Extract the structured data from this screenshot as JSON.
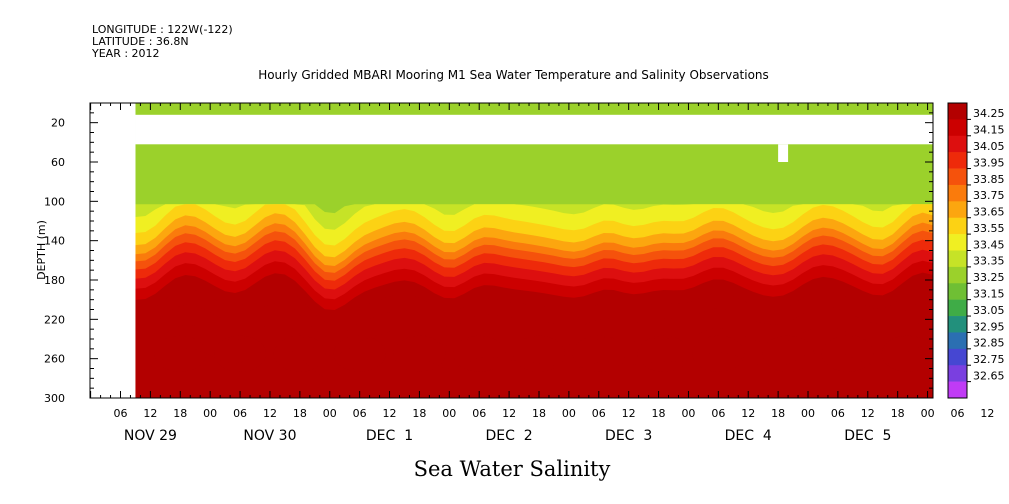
{
  "header": {
    "longitude": "LONGITUDE : 122W(-122)",
    "latitude": "LATITUDE : 36.8N",
    "year": "YEAR : 2012",
    "title": "Hourly Gridded MBARI Mooring M1 Sea Water Temperature and Salinity Observations"
  },
  "chart_data": {
    "type": "heatmap",
    "title": "Hourly Gridded MBARI Mooring M1 Sea Water Temperature and Salinity Observations",
    "xlabel": "",
    "ylabel": "DEPTH (m)",
    "bottom_label": "Sea Water Salinity",
    "y_ticks": [
      20,
      60,
      100,
      140,
      180,
      220,
      260,
      300
    ],
    "ylim": [
      0,
      300
    ],
    "y_inverted": true,
    "x_hour_ticks": [
      "06",
      "12",
      "18",
      "00",
      "06",
      "12",
      "18",
      "00",
      "06",
      "12",
      "18",
      "00",
      "06",
      "12",
      "18",
      "00",
      "06",
      "12",
      "18",
      "00",
      "06",
      "12",
      "18",
      "00",
      "06",
      "12",
      "18",
      "00",
      "06",
      "12",
      "18",
      "00"
    ],
    "day_labels": [
      "NOV 29",
      "NOV 30",
      "DEC  1",
      "DEC  2",
      "DEC  3",
      "DEC  4",
      "DEC  5"
    ],
    "data_gaps": [
      {
        "x_start_hour": 0,
        "x_end_hour": 9,
        "depth_from": 0,
        "depth_to": 300
      },
      {
        "x_start_hour": 9,
        "x_end_hour": 203,
        "depth_from": 12,
        "depth_to": 42
      },
      {
        "x_start_hour": 138,
        "x_end_hour": 140,
        "depth_from": 42,
        "depth_to": 60
      }
    ],
    "colorbar": {
      "levels": [
        "34.25",
        "34.15",
        "34.05",
        "33.95",
        "33.85",
        "33.75",
        "33.65",
        "33.55",
        "33.45",
        "33.35",
        "33.25",
        "33.15",
        "33.05",
        "32.95",
        "32.85",
        "32.75",
        "32.65"
      ],
      "colors": [
        "#b30000",
        "#cc0000",
        "#dd0f0f",
        "#ee2a0a",
        "#f5520c",
        "#fa7b0c",
        "#fca60f",
        "#fcd214",
        "#f0ef22",
        "#c6e327",
        "#9bd12b",
        "#6fbf34",
        "#3fac47",
        "#22907c",
        "#2b6fb2",
        "#4647d2",
        "#7a3fe0",
        "#c03bf5"
      ]
    }
  }
}
